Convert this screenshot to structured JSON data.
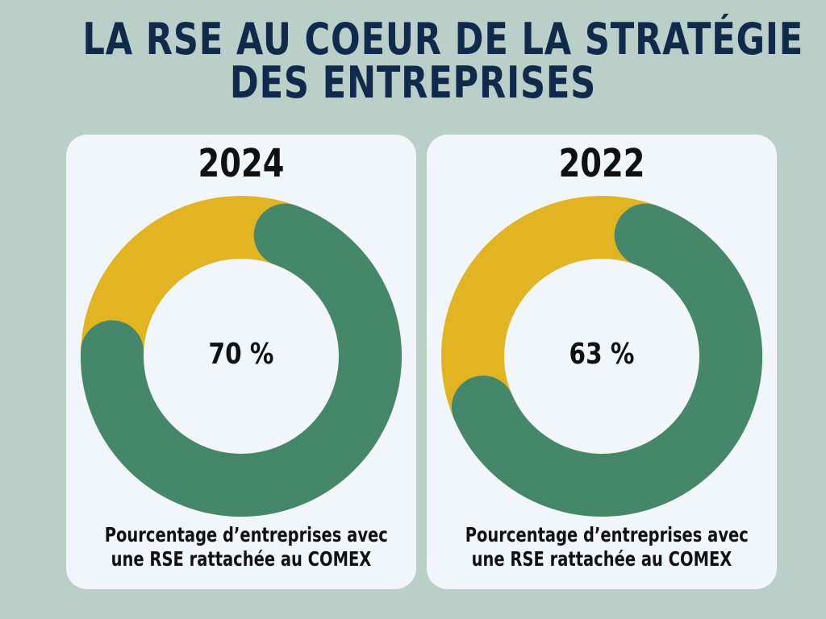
{
  "title": {
    "line1": "LA RSE AU COEUR DE LA STRATÉGIE",
    "line2": "DES ENTREPRISES"
  },
  "colors": {
    "background": "#b9cfc8",
    "card": "#f1f6fa",
    "title": "#0f2a4a",
    "share_rse_comex": "#45876a",
    "remainder": "#e0b521"
  },
  "chart_data": [
    {
      "type": "pie",
      "variant": "donut",
      "title": "2024",
      "center_label": "70 %",
      "caption_line1": "Pourcentage d’entreprises avec",
      "caption_line2": "une RSE rattachée au COMEX",
      "values": [
        70,
        30
      ]
    },
    {
      "type": "pie",
      "variant": "donut",
      "title": "2022",
      "center_label": "63 %",
      "caption_line1": "Pourcentage d’entreprises avec",
      "caption_line2": "une RSE rattachée au COMEX",
      "values": [
        63,
        37
      ]
    }
  ]
}
